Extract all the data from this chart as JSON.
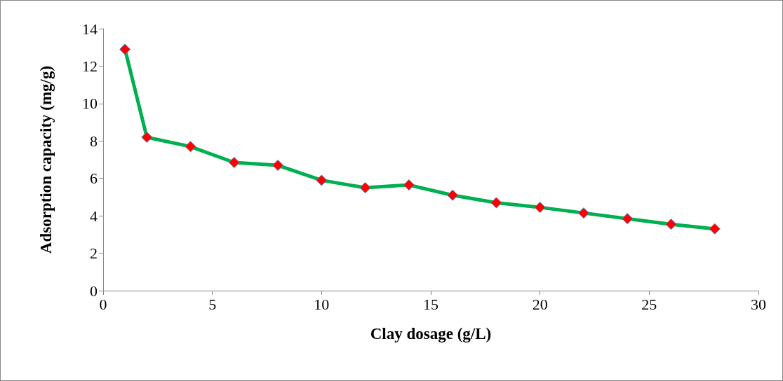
{
  "chart_data": {
    "type": "line",
    "xlabel": "Clay dosage (g/L)",
    "ylabel": "Adsorption capacity (mg/g)",
    "x": [
      1,
      2,
      4,
      6,
      8,
      10,
      12,
      14,
      16,
      18,
      20,
      22,
      24,
      26,
      28
    ],
    "series": [
      {
        "color": "#00b050",
        "colors": [
          "#ff0000",
          "#ff0000",
          "#ff0000",
          "#ff0000",
          "#ff0000",
          "#ff0000",
          "#ff0000",
          "#ff0000",
          "#ff0000",
          "#ff0000",
          "#ff0000",
          "#ff0000",
          "#ff0000",
          "#ff0000",
          "#ff0000"
        ],
        "values": [
          12.9,
          8.2,
          7.7,
          6.85,
          6.7,
          5.9,
          5.5,
          5.65,
          5.1,
          4.7,
          4.45,
          4.15,
          3.85,
          3.55,
          3.3
        ]
      }
    ],
    "xlim": [
      0,
      30
    ],
    "xticks": [
      0,
      5,
      10,
      15,
      20,
      25,
      30
    ],
    "ylim": [
      0,
      14
    ],
    "yticks": [
      0,
      2,
      4,
      6,
      8,
      10,
      12,
      14
    ],
    "marker": "diamond",
    "line_style": "solid"
  }
}
